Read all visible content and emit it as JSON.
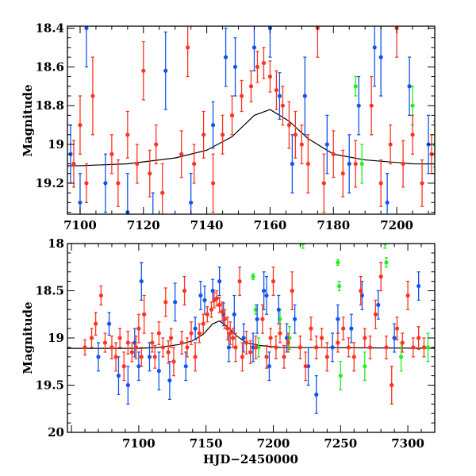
{
  "chart_data": [
    {
      "type": "scatter",
      "panel": "top",
      "title": "",
      "xlabel": "",
      "ylabel": "Magnitude",
      "xlim": [
        7096,
        7212
      ],
      "ylim": [
        19.36,
        18.39
      ],
      "y_inverted": true,
      "xticks": {
        "major": 20,
        "minor": 5,
        "labels": [
          "7100",
          "7120",
          "7140",
          "7160",
          "7180",
          "7200"
        ]
      },
      "yticks": {
        "major": 0.2,
        "minor": 0.05,
        "labels": [
          "18.4",
          "18.6",
          "18.8",
          "19",
          "19.2"
        ]
      },
      "grid": false
    },
    {
      "type": "scatter",
      "panel": "bottom",
      "title": "",
      "xlabel": "HJD−2450000",
      "ylabel": "Magnitude",
      "xlim": [
        7047,
        7320
      ],
      "ylim": [
        20,
        18
      ],
      "y_inverted": true,
      "xticks": {
        "major": 50,
        "minor": 10,
        "labels": [
          "7100",
          "7150",
          "7200",
          "7250",
          "7300"
        ]
      },
      "yticks": {
        "major": 0.5,
        "minor": 0.1,
        "labels": [
          "18",
          "18.5",
          "19",
          "19.5",
          "20"
        ]
      },
      "grid": false
    }
  ],
  "series": [
    {
      "name": "green",
      "color": "#22ee22",
      "points": [
        [
          7185,
          18.35,
          0.03
        ],
        [
          7187,
          18.7,
          0.05
        ],
        [
          7189,
          19.1,
          0.1
        ],
        [
          7205,
          18.8,
          0.1
        ],
        [
          7212,
          19.0,
          0.12
        ],
        [
          7222,
          18.0,
          0.05
        ],
        [
          7248,
          18.2,
          0.03
        ],
        [
          7249,
          18.45,
          0.05
        ],
        [
          7250,
          19.4,
          0.15
        ],
        [
          7268,
          19.3,
          0.15
        ],
        [
          7283,
          18.0,
          0.05
        ],
        [
          7284,
          18.2,
          0.05
        ],
        [
          7295,
          19.2,
          0.15
        ],
        [
          7315,
          19.1,
          0.15
        ]
      ]
    },
    {
      "name": "blue",
      "color": "#1155ee",
      "points": [
        [
          7070,
          19.2,
          0.15
        ],
        [
          7078,
          18.85,
          0.12
        ],
        [
          7085,
          19.4,
          0.2
        ],
        [
          7092,
          19.5,
          0.2
        ],
        [
          7097,
          19.05,
          0.15
        ],
        [
          7100,
          19.3,
          0.15
        ],
        [
          7102,
          18.4,
          0.2
        ],
        [
          7108,
          19.2,
          0.15
        ],
        [
          7115,
          19.35,
          0.2
        ],
        [
          7123,
          19.45,
          0.2
        ],
        [
          7127,
          18.62,
          0.2
        ],
        [
          7135,
          19.3,
          0.15
        ],
        [
          7142,
          18.9,
          0.12
        ],
        [
          7146,
          18.55,
          0.15
        ],
        [
          7149,
          18.6,
          0.15
        ],
        [
          7155,
          18.5,
          0.12
        ],
        [
          7160,
          18.4,
          0.15
        ],
        [
          7163,
          18.75,
          0.12
        ],
        [
          7167,
          19.1,
          0.15
        ],
        [
          7171,
          18.75,
          0.2
        ],
        [
          7178,
          19.0,
          0.15
        ],
        [
          7185,
          19.1,
          0.15
        ],
        [
          7188,
          18.8,
          0.15
        ],
        [
          7193,
          18.5,
          0.2
        ],
        [
          7195,
          18.55,
          0.2
        ],
        [
          7197,
          19.3,
          0.15
        ],
        [
          7204,
          18.7,
          0.15
        ],
        [
          7210,
          19.0,
          0.15
        ],
        [
          7216,
          18.8,
          0.15
        ],
        [
          7226,
          19.3,
          0.2
        ],
        [
          7232,
          19.6,
          0.2
        ],
        [
          7244,
          19.1,
          0.15
        ],
        [
          7248,
          18.8,
          0.15
        ],
        [
          7258,
          18.9,
          0.15
        ],
        [
          7266,
          18.55,
          0.15
        ],
        [
          7278,
          18.65,
          0.15
        ],
        [
          7290,
          19.0,
          0.15
        ],
        [
          7308,
          18.45,
          0.15
        ]
      ]
    },
    {
      "name": "red",
      "color": "#ff3322",
      "points": [
        [
          7060,
          19.1,
          0.08
        ],
        [
          7065,
          19.0,
          0.1
        ],
        [
          7068,
          18.85,
          0.12
        ],
        [
          7072,
          18.55,
          0.1
        ],
        [
          7075,
          19.05,
          0.1
        ],
        [
          7080,
          19.1,
          0.12
        ],
        [
          7083,
          19.2,
          0.15
        ],
        [
          7086,
          19.0,
          0.1
        ],
        [
          7089,
          19.3,
          0.15
        ],
        [
          7092,
          19.05,
          0.12
        ],
        [
          7095,
          19.15,
          0.1
        ],
        [
          7098,
          19.1,
          0.12
        ],
        [
          7100,
          18.9,
          0.15
        ],
        [
          7102,
          19.2,
          0.1
        ],
        [
          7104,
          18.75,
          0.2
        ],
        [
          7110,
          19.05,
          0.1
        ],
        [
          7112,
          19.2,
          0.12
        ],
        [
          7115,
          18.95,
          0.12
        ],
        [
          7118,
          19.1,
          0.1
        ],
        [
          7120,
          18.62,
          0.15
        ],
        [
          7122,
          19.15,
          0.12
        ],
        [
          7124,
          19.0,
          0.1
        ],
        [
          7126,
          19.25,
          0.15
        ],
        [
          7132,
          19.05,
          0.12
        ],
        [
          7134,
          18.5,
          0.15
        ],
        [
          7136,
          19.1,
          0.1
        ],
        [
          7139,
          18.95,
          0.12
        ],
        [
          7142,
          19.2,
          0.15
        ],
        [
          7145,
          18.95,
          0.1
        ],
        [
          7148,
          18.85,
          0.1
        ],
        [
          7151,
          18.75,
          0.08
        ],
        [
          7154,
          18.7,
          0.08
        ],
        [
          7156,
          18.6,
          0.08
        ],
        [
          7158,
          18.58,
          0.08
        ],
        [
          7160,
          18.65,
          0.08
        ],
        [
          7162,
          18.72,
          0.1
        ],
        [
          7164,
          18.8,
          0.1
        ],
        [
          7166,
          18.9,
          0.12
        ],
        [
          7168,
          18.95,
          0.12
        ],
        [
          7170,
          19.0,
          0.1
        ],
        [
          7172,
          19.1,
          0.15
        ],
        [
          7175,
          18.4,
          0.15
        ],
        [
          7177,
          19.2,
          0.15
        ],
        [
          7180,
          19.05,
          0.12
        ],
        [
          7183,
          19.15,
          0.12
        ],
        [
          7187,
          19.1,
          0.12
        ],
        [
          7192,
          18.8,
          0.15
        ],
        [
          7195,
          19.2,
          0.12
        ],
        [
          7198,
          19.0,
          0.1
        ],
        [
          7200,
          18.4,
          0.15
        ],
        [
          7202,
          19.1,
          0.12
        ],
        [
          7205,
          18.95,
          0.1
        ],
        [
          7208,
          19.2,
          0.12
        ],
        [
          7211,
          19.05,
          0.1
        ],
        [
          7214,
          18.5,
          0.2
        ],
        [
          7220,
          19.1,
          0.12
        ],
        [
          7224,
          19.3,
          0.15
        ],
        [
          7228,
          18.9,
          0.12
        ],
        [
          7232,
          19.1,
          0.12
        ],
        [
          7236,
          19.0,
          0.1
        ],
        [
          7240,
          19.2,
          0.15
        ],
        [
          7248,
          19.05,
          0.1
        ],
        [
          7252,
          18.9,
          0.12
        ],
        [
          7256,
          19.1,
          0.1
        ],
        [
          7260,
          19.2,
          0.15
        ],
        [
          7265,
          18.5,
          0.15
        ],
        [
          7268,
          19.0,
          0.1
        ],
        [
          7272,
          19.1,
          0.12
        ],
        [
          7276,
          18.75,
          0.15
        ],
        [
          7280,
          18.35,
          0.15
        ],
        [
          7284,
          19.1,
          0.12
        ],
        [
          7288,
          19.5,
          0.2
        ],
        [
          7292,
          18.9,
          0.12
        ],
        [
          7296,
          19.05,
          0.1
        ],
        [
          7300,
          18.55,
          0.15
        ],
        [
          7304,
          19.1,
          0.1
        ],
        [
          7308,
          19.0,
          0.12
        ],
        [
          7312,
          19.1,
          0.1
        ]
      ]
    }
  ],
  "model_line": {
    "name": "model",
    "color": "#000000",
    "points": [
      [
        7040,
        19.11
      ],
      [
        7100,
        19.11
      ],
      [
        7115,
        19.1
      ],
      [
        7130,
        19.07
      ],
      [
        7140,
        19.03
      ],
      [
        7148,
        18.96
      ],
      [
        7155,
        18.85
      ],
      [
        7160,
        18.82
      ],
      [
        7166,
        18.88
      ],
      [
        7172,
        18.97
      ],
      [
        7180,
        19.05
      ],
      [
        7190,
        19.08
      ],
      [
        7205,
        19.1
      ],
      [
        7330,
        19.11
      ]
    ]
  }
}
